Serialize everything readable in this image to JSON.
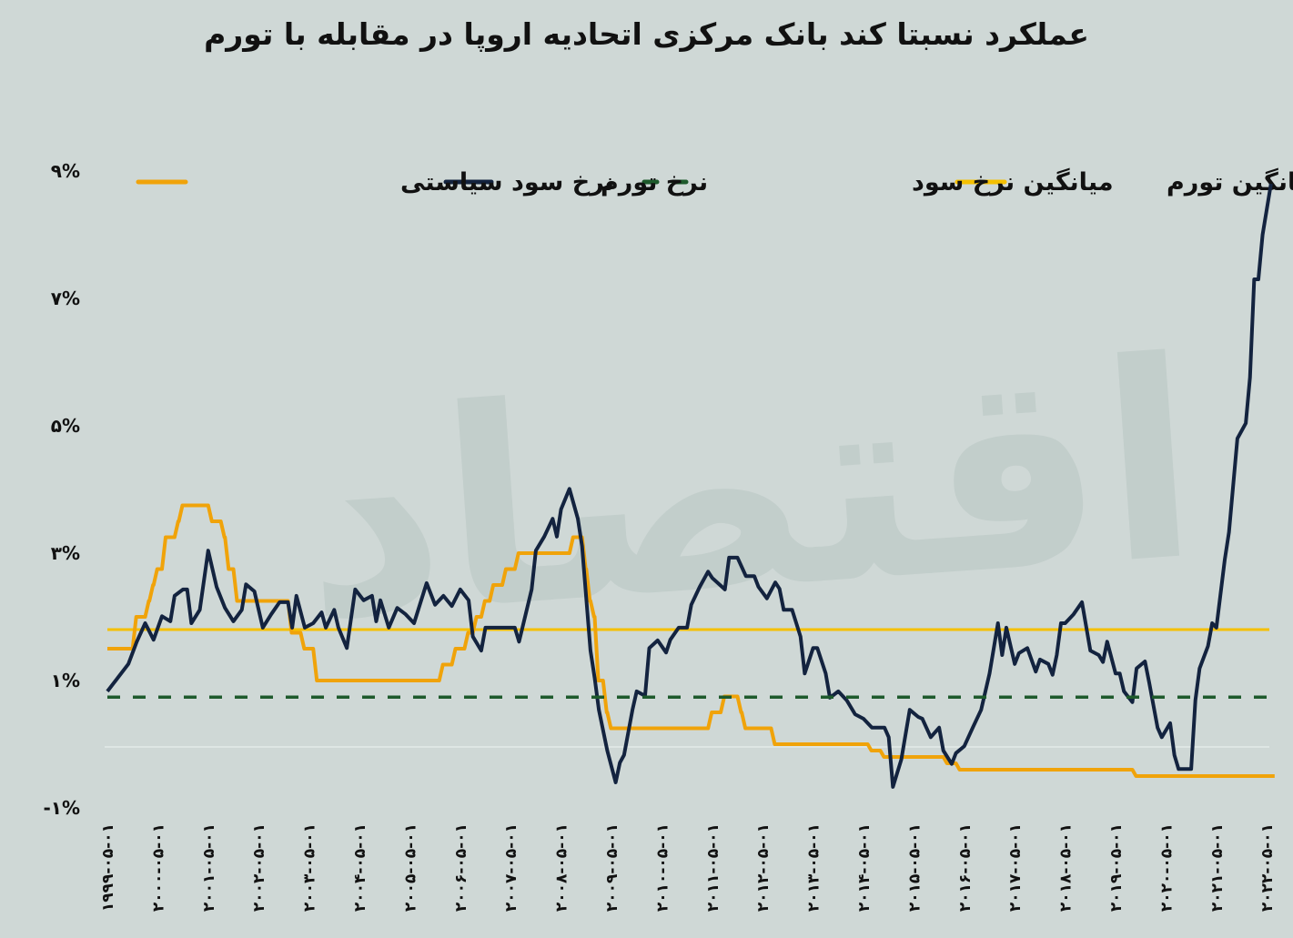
{
  "title": "عملکرد نسبتا کند بانک مرکزی اتحادیه اروپا در مقابله با تورم",
  "watermark": "فردای اقتصاد",
  "chart_data": {
    "type": "line",
    "title": "عملکرد نسبتا کند بانک مرکزی اتحادیه اروپا در مقابله با تورم",
    "legend_position": "top",
    "grid": false,
    "ylim": [
      -1,
      9
    ],
    "y_ticks": [
      {
        "value": -1,
        "label": "-۱%"
      },
      {
        "value": 1,
        "label": "۱%"
      },
      {
        "value": 3,
        "label": "۳%"
      },
      {
        "value": 5,
        "label": "۵%"
      },
      {
        "value": 7,
        "label": "۷%"
      },
      {
        "value": 9,
        "label": "۹%"
      }
    ],
    "x_ticks": [
      "۱۹۹۹-۰۵-۰۱",
      "۲۰۰۰-۰۵-۰۱",
      "۲۰۰۱-۰۵-۰۱",
      "۲۰۰۲-۰۵-۰۱",
      "۲۰۰۳-۰۵-۰۱",
      "۲۰۰۴-۰۵-۰۱",
      "۲۰۰۵-۰۵-۰۱",
      "۲۰۰۶-۰۵-۰۱",
      "۲۰۰۷-۰۵-۰۱",
      "۲۰۰۸-۰۵-۰۱",
      "۲۰۰۹-۰۵-۰۱",
      "۲۰۱۰-۰۵-۰۱",
      "۲۰۱۱-۰۵-۰۱",
      "۲۰۱۲-۰۵-۰۱",
      "۲۰۱۳-۰۵-۰۱",
      "۲۰۱۴-۰۵-۰۱",
      "۲۰۱۵-۰۵-۰۱",
      "۲۰۱۶-۰۵-۰۱",
      "۲۰۱۷-۰۵-۰۱",
      "۲۰۱۸-۰۵-۰۱",
      "۲۰۱۹-۰۵-۰۱",
      "۲۰۲۰-۰۵-۰۱",
      "۲۰۲۱-۰۵-۰۱",
      "۲۰۲۲-۰۵-۰۱"
    ],
    "x_range": [
      "1999-05",
      "2022-06"
    ],
    "series": [
      {
        "name": "نرخ سود سیاستی",
        "color": "#f0a30a",
        "style": "step",
        "points": [
          [
            "1999-05",
            1.5
          ],
          [
            "1999-11",
            2.0
          ],
          [
            "2000-02",
            2.25
          ],
          [
            "2000-03",
            2.5
          ],
          [
            "2000-04",
            2.75
          ],
          [
            "2000-06",
            3.25
          ],
          [
            "2000-09",
            3.5
          ],
          [
            "2000-10",
            3.75
          ],
          [
            "2001-05",
            3.5
          ],
          [
            "2001-08",
            3.25
          ],
          [
            "2001-09",
            2.75
          ],
          [
            "2001-11",
            2.25
          ],
          [
            "2002-12",
            1.75
          ],
          [
            "2003-03",
            1.5
          ],
          [
            "2003-06",
            1.0
          ],
          [
            "2005-12",
            1.25
          ],
          [
            "2006-03",
            1.5
          ],
          [
            "2006-06",
            1.75
          ],
          [
            "2006-08",
            2.0
          ],
          [
            "2006-10",
            2.25
          ],
          [
            "2006-12",
            2.5
          ],
          [
            "2007-03",
            2.75
          ],
          [
            "2007-06",
            3.0
          ],
          [
            "2008-07",
            3.25
          ],
          [
            "2008-10",
            2.75
          ],
          [
            "2008-11",
            2.25
          ],
          [
            "2008-12",
            2.0
          ],
          [
            "2009-01",
            1.0
          ],
          [
            "2009-03",
            0.5
          ],
          [
            "2009-04",
            0.25
          ],
          [
            "2011-04",
            0.5
          ],
          [
            "2011-07",
            0.75
          ],
          [
            "2011-11",
            0.5
          ],
          [
            "2011-12",
            0.25
          ],
          [
            "2012-07",
            0.0
          ],
          [
            "2014-06",
            -0.1
          ],
          [
            "2014-09",
            -0.2
          ],
          [
            "2015-12",
            -0.3
          ],
          [
            "2016-03",
            -0.4
          ],
          [
            "2019-09",
            -0.5
          ],
          [
            "2022-06",
            -0.5
          ]
        ]
      },
      {
        "name": "نرخ تورم",
        "color": "#13233f",
        "style": "line",
        "points": [
          [
            "1999-05",
            0.83
          ],
          [
            "1999-10",
            1.26
          ],
          [
            "1999-12",
            1.61
          ],
          [
            "2000-02",
            1.9
          ],
          [
            "2000-04",
            1.64
          ],
          [
            "2000-06",
            2.01
          ],
          [
            "2000-08",
            1.93
          ],
          [
            "2000-09",
            2.33
          ],
          [
            "2000-11",
            2.43
          ],
          [
            "2000-12",
            2.43
          ],
          [
            "2001-01",
            1.9
          ],
          [
            "2001-03",
            2.11
          ],
          [
            "2001-05",
            3.04
          ],
          [
            "2001-07",
            2.47
          ],
          [
            "2001-09",
            2.14
          ],
          [
            "2001-11",
            1.93
          ],
          [
            "2002-01",
            2.11
          ],
          [
            "2002-02",
            2.51
          ],
          [
            "2002-04",
            2.4
          ],
          [
            "2002-06",
            1.83
          ],
          [
            "2002-08",
            2.04
          ],
          [
            "2002-10",
            2.23
          ],
          [
            "2002-12",
            2.23
          ],
          [
            "2003-01",
            1.83
          ],
          [
            "2003-02",
            2.33
          ],
          [
            "2003-04",
            1.83
          ],
          [
            "2003-06",
            1.9
          ],
          [
            "2003-08",
            2.07
          ],
          [
            "2003-09",
            1.83
          ],
          [
            "2003-11",
            2.11
          ],
          [
            "2003-12",
            1.83
          ],
          [
            "2004-02",
            1.51
          ],
          [
            "2004-04",
            2.43
          ],
          [
            "2004-06",
            2.26
          ],
          [
            "2004-08",
            2.33
          ],
          [
            "2004-09",
            1.93
          ],
          [
            "2004-10",
            2.26
          ],
          [
            "2004-12",
            1.83
          ],
          [
            "2005-02",
            2.14
          ],
          [
            "2005-04",
            2.04
          ],
          [
            "2005-06",
            1.9
          ],
          [
            "2005-09",
            2.53
          ],
          [
            "2005-11",
            2.19
          ],
          [
            "2006-01",
            2.33
          ],
          [
            "2006-03",
            2.17
          ],
          [
            "2006-05",
            2.43
          ],
          [
            "2006-07",
            2.26
          ],
          [
            "2006-08",
            1.69
          ],
          [
            "2006-10",
            1.47
          ],
          [
            "2006-11",
            1.83
          ],
          [
            "2007-01",
            1.83
          ],
          [
            "2007-05",
            1.83
          ],
          [
            "2007-06",
            1.83
          ],
          [
            "2007-07",
            1.61
          ],
          [
            "2007-10",
            2.43
          ],
          [
            "2007-11",
            3.04
          ],
          [
            "2008-01",
            3.26
          ],
          [
            "2008-03",
            3.54
          ],
          [
            "2008-04",
            3.26
          ],
          [
            "2008-05",
            3.69
          ],
          [
            "2008-07",
            4.01
          ],
          [
            "2008-09",
            3.54
          ],
          [
            "2008-10",
            3.11
          ],
          [
            "2008-12",
            1.47
          ],
          [
            "2009-01",
            1.04
          ],
          [
            "2009-02",
            0.54
          ],
          [
            "2009-04",
            -0.1
          ],
          [
            "2009-06",
            -0.6
          ],
          [
            "2009-07",
            -0.29
          ],
          [
            "2009-08",
            -0.17
          ],
          [
            "2009-10",
            0.54
          ],
          [
            "2009-11",
            0.83
          ],
          [
            "2010-01",
            0.76
          ],
          [
            "2010-02",
            1.51
          ],
          [
            "2010-04",
            1.63
          ],
          [
            "2010-06",
            1.44
          ],
          [
            "2010-07",
            1.64
          ],
          [
            "2010-09",
            1.83
          ],
          [
            "2010-11",
            1.83
          ],
          [
            "2010-12",
            2.19
          ],
          [
            "2011-02",
            2.47
          ],
          [
            "2011-04",
            2.71
          ],
          [
            "2011-05",
            2.61
          ],
          [
            "2011-08",
            2.43
          ],
          [
            "2011-09",
            2.93
          ],
          [
            "2011-11",
            2.93
          ],
          [
            "2012-01",
            2.64
          ],
          [
            "2012-03",
            2.64
          ],
          [
            "2012-04",
            2.47
          ],
          [
            "2012-06",
            2.29
          ],
          [
            "2012-08",
            2.54
          ],
          [
            "2012-09",
            2.44
          ],
          [
            "2012-10",
            2.11
          ],
          [
            "2012-12",
            2.11
          ],
          [
            "2013-02",
            1.69
          ],
          [
            "2013-03",
            1.11
          ],
          [
            "2013-05",
            1.51
          ],
          [
            "2013-06",
            1.51
          ],
          [
            "2013-08",
            1.11
          ],
          [
            "2013-09",
            0.73
          ],
          [
            "2013-11",
            0.83
          ],
          [
            "2014-01",
            0.69
          ],
          [
            "2014-03",
            0.47
          ],
          [
            "2014-05",
            0.4
          ],
          [
            "2014-07",
            0.26
          ],
          [
            "2014-10",
            0.26
          ],
          [
            "2014-11",
            0.11
          ],
          [
            "2014-12",
            -0.67
          ],
          [
            "2015-02",
            -0.24
          ],
          [
            "2015-04",
            0.54
          ],
          [
            "2015-06",
            0.43
          ],
          [
            "2015-07",
            0.4
          ],
          [
            "2015-09",
            0.11
          ],
          [
            "2015-11",
            0.26
          ],
          [
            "2015-12",
            -0.1
          ],
          [
            "2016-02",
            -0.31
          ],
          [
            "2016-03",
            -0.14
          ],
          [
            "2016-05",
            -0.03
          ],
          [
            "2016-07",
            0.26
          ],
          [
            "2016-09",
            0.54
          ],
          [
            "2016-11",
            1.11
          ],
          [
            "2017-01",
            1.9
          ],
          [
            "2017-02",
            1.4
          ],
          [
            "2017-03",
            1.83
          ],
          [
            "2017-05",
            1.26
          ],
          [
            "2017-06",
            1.43
          ],
          [
            "2017-08",
            1.51
          ],
          [
            "2017-10",
            1.14
          ],
          [
            "2017-11",
            1.33
          ],
          [
            "2018-01",
            1.26
          ],
          [
            "2018-02",
            1.09
          ],
          [
            "2018-03",
            1.4
          ],
          [
            "2018-04",
            1.9
          ],
          [
            "2018-05",
            1.9
          ],
          [
            "2018-07",
            2.04
          ],
          [
            "2018-09",
            2.23
          ],
          [
            "2018-11",
            1.47
          ],
          [
            "2019-01",
            1.4
          ],
          [
            "2019-02",
            1.29
          ],
          [
            "2019-03",
            1.61
          ],
          [
            "2019-05",
            1.11
          ],
          [
            "2019-06",
            1.11
          ],
          [
            "2019-07",
            0.83
          ],
          [
            "2019-09",
            0.66
          ],
          [
            "2019-10",
            1.19
          ],
          [
            "2019-12",
            1.3
          ],
          [
            "2020-01",
            0.97
          ],
          [
            "2020-03",
            0.26
          ],
          [
            "2020-04",
            0.11
          ],
          [
            "2020-06",
            0.33
          ],
          [
            "2020-07",
            -0.17
          ],
          [
            "2020-08",
            -0.39
          ],
          [
            "2020-11",
            -0.39
          ],
          [
            "2020-12",
            0.69
          ],
          [
            "2021-01",
            1.19
          ],
          [
            "2021-03",
            1.54
          ],
          [
            "2021-04",
            1.9
          ],
          [
            "2021-05",
            1.83
          ],
          [
            "2021-07",
            2.9
          ],
          [
            "2021-08",
            3.33
          ],
          [
            "2021-10",
            4.8
          ],
          [
            "2021-12",
            5.04
          ],
          [
            "2022-01",
            5.76
          ],
          [
            "2022-02",
            7.3
          ],
          [
            "2022-03",
            7.3
          ],
          [
            "2022-04",
            8.0
          ],
          [
            "2022-06",
            8.8
          ]
        ]
      },
      {
        "name": "میانگین نرخ سود",
        "color": "#1e5a2c",
        "style": "dashed",
        "value": 0.74
      },
      {
        "name": "میانگین تورم",
        "color": "#f5c000",
        "style": "line",
        "value": 1.8
      }
    ]
  }
}
